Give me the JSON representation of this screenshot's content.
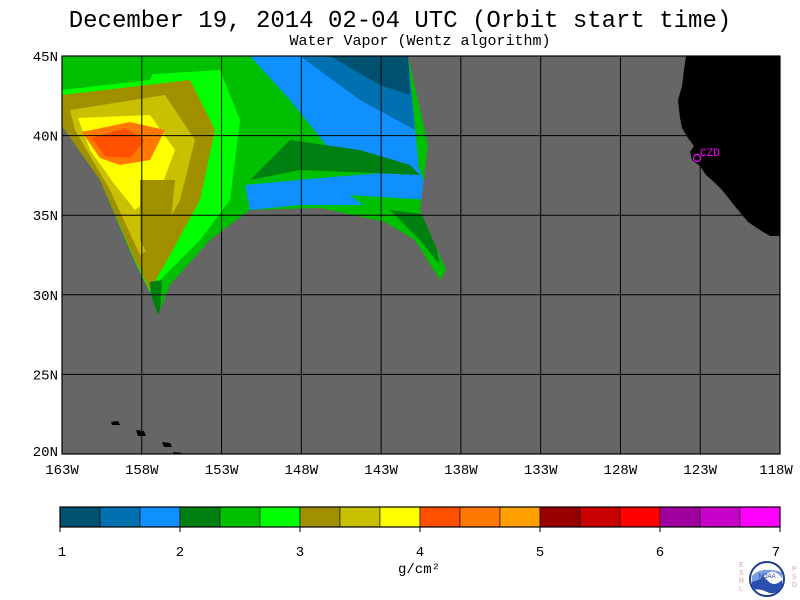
{
  "header": {
    "title": "December 19, 2014  02-04 UTC  (Orbit start time)",
    "subtitle": "Water Vapor (Wentz algorithm)"
  },
  "map": {
    "lat_ticks": [
      "45N",
      "40N",
      "35N",
      "30N",
      "25N",
      "20N"
    ],
    "lon_ticks": [
      "163W",
      "158W",
      "153W",
      "148W",
      "143W",
      "138W",
      "133W",
      "128W",
      "123W",
      "118W"
    ],
    "lat_values": [
      45,
      40,
      35,
      30,
      25,
      20
    ],
    "lon_values": [
      -163,
      -158,
      -153,
      -148,
      -143,
      -138,
      -133,
      -128,
      -123,
      -118
    ],
    "lat_range": [
      20,
      45
    ],
    "lon_range": [
      -163,
      -118
    ],
    "station_label": "CZD",
    "colors": {
      "ocean": "#666666",
      "land": "#000000",
      "grid": "#000000",
      "station": "#ff00ff"
    }
  },
  "colorbar": {
    "labels": [
      "1",
      "2",
      "3",
      "4",
      "5",
      "6",
      "7"
    ],
    "unit": "g/cm²",
    "colors": [
      "#005070",
      "#0070b0",
      "#1090ff",
      "#008010",
      "#00c000",
      "#00ff00",
      "#a09000",
      "#c8c000",
      "#ffff00",
      "#ff5000",
      "#ff7800",
      "#ffa000",
      "#980000",
      "#c80000",
      "#ff0000",
      "#a000a0",
      "#c800c8",
      "#ff00ff"
    ]
  },
  "logo": {
    "left_letters": [
      "E",
      "S",
      "R",
      "L"
    ],
    "right_letters": [
      "P",
      "S",
      "D"
    ],
    "text": "NOAA"
  }
}
